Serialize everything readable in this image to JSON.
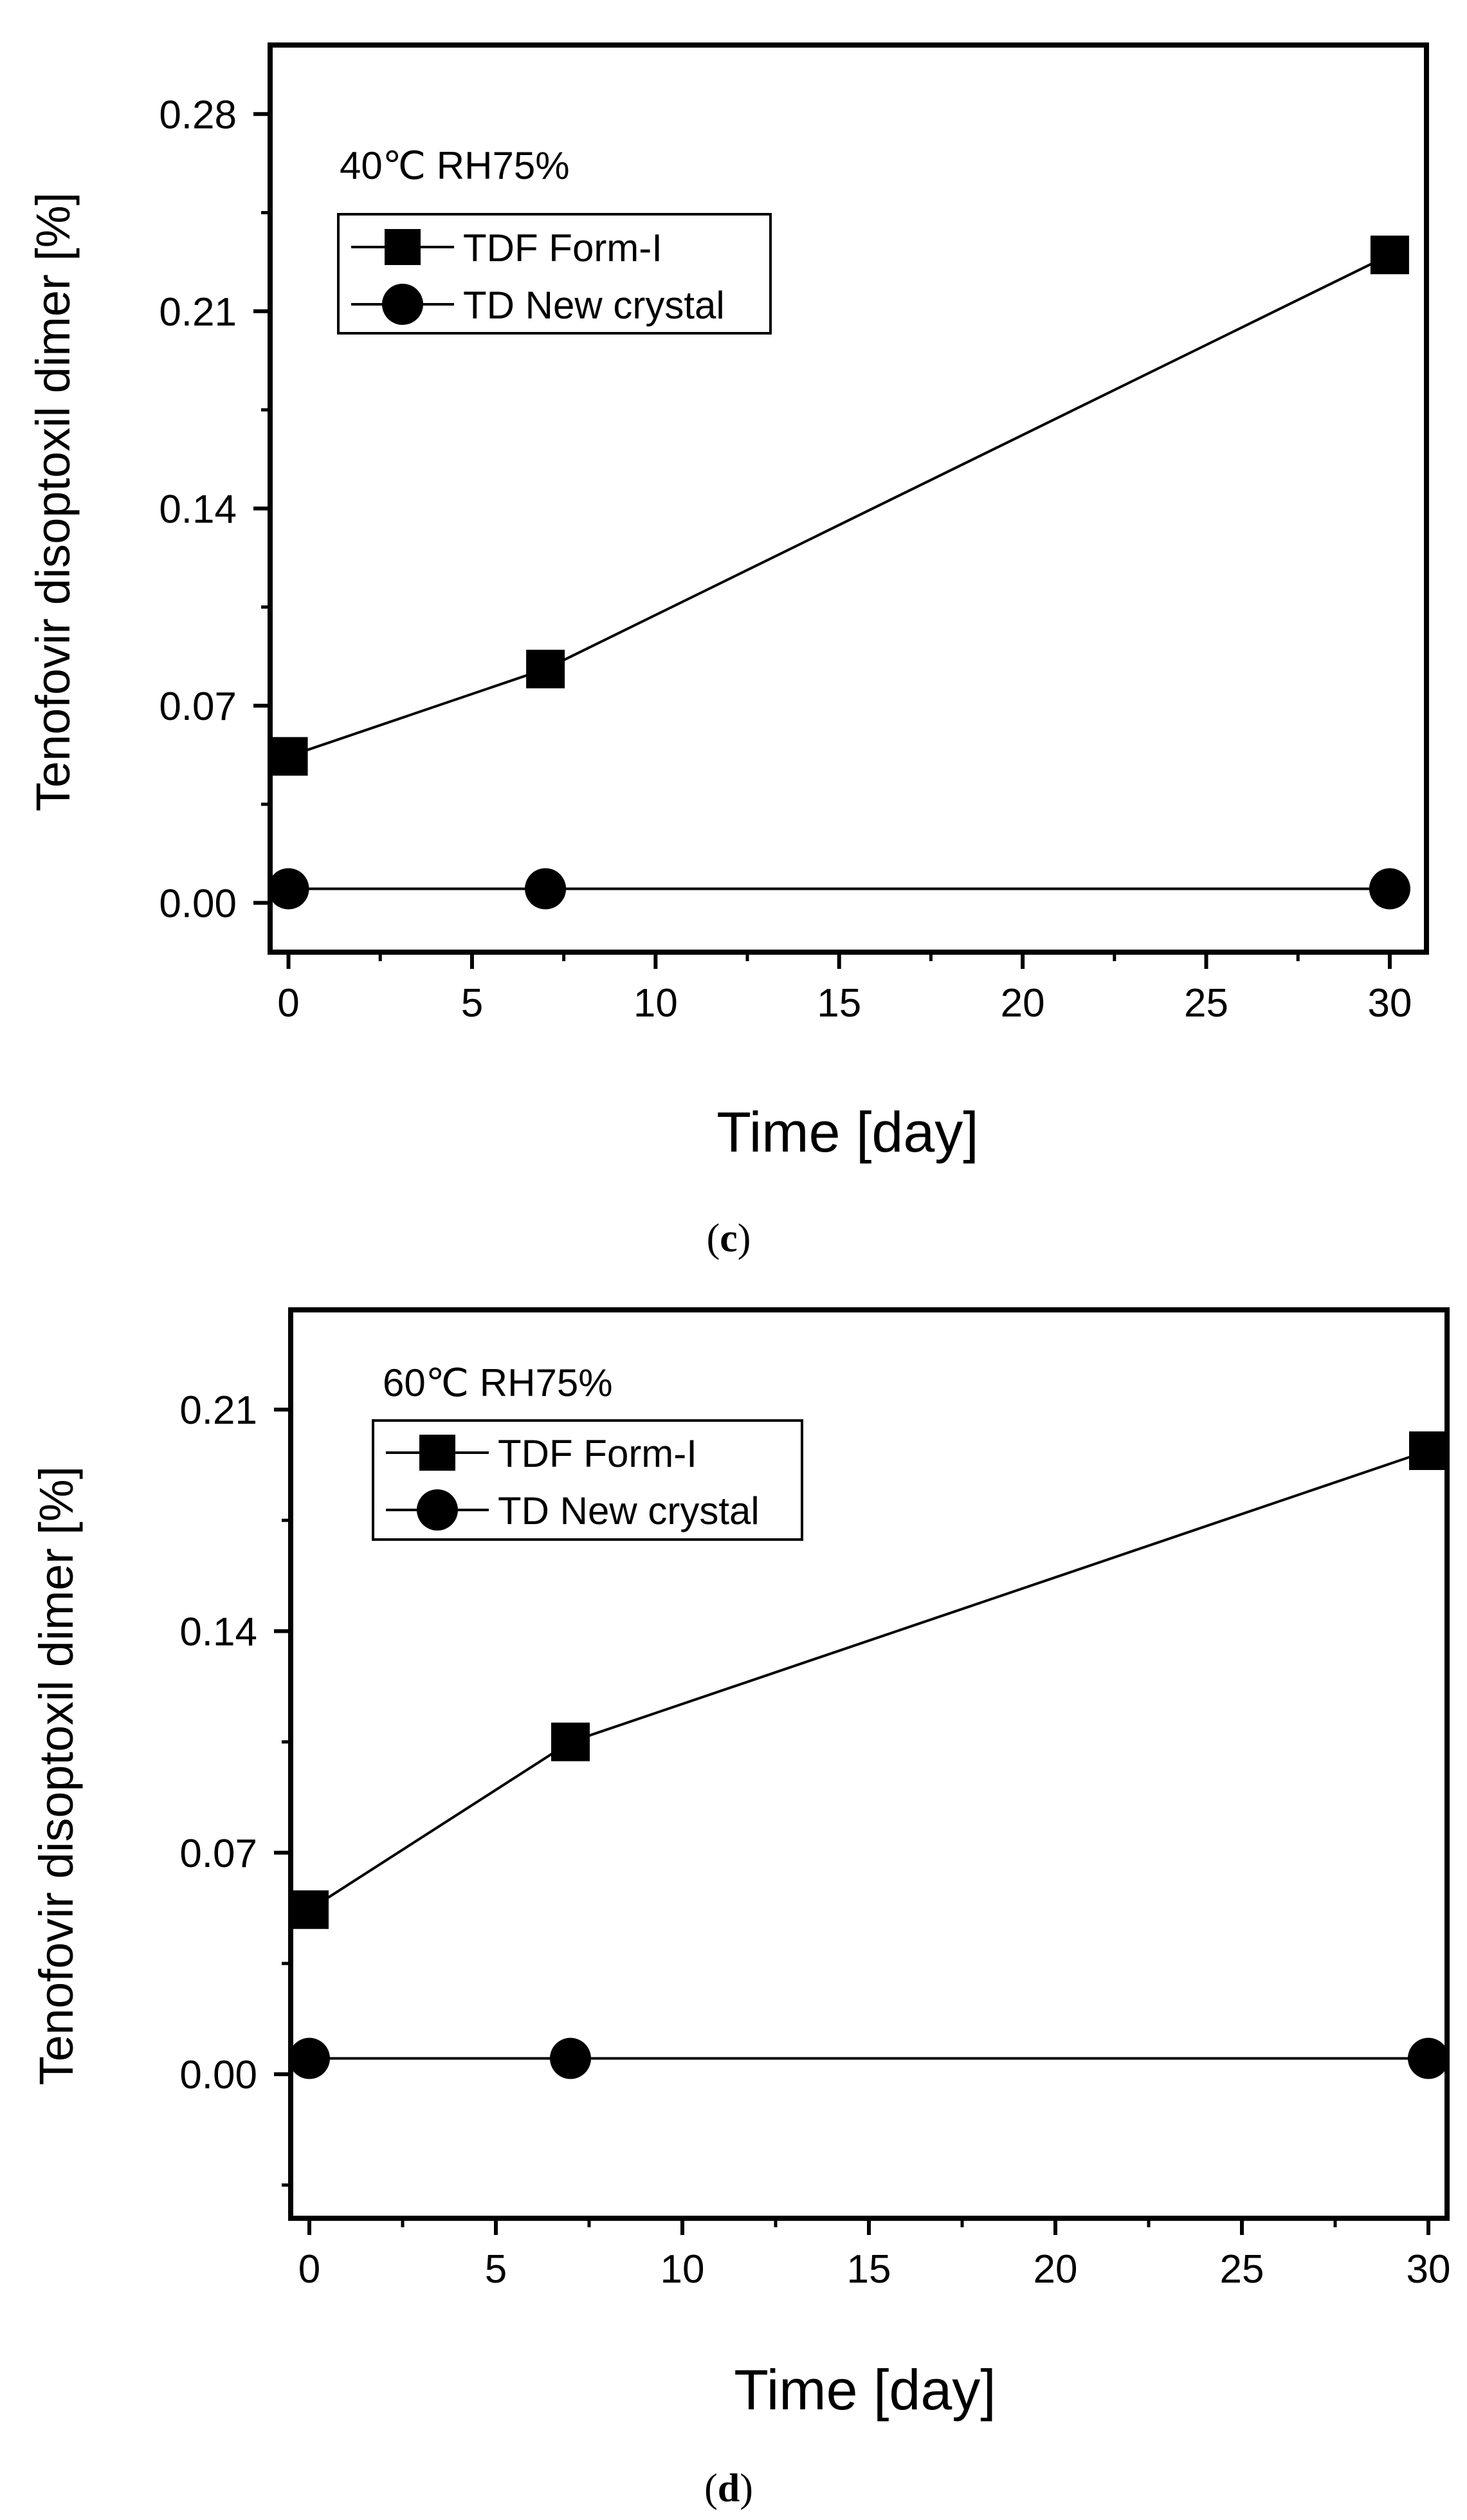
{
  "colors": {
    "ink": "#000000",
    "background": "#ffffff"
  },
  "chart_data": [
    {
      "type": "line",
      "panel_label": "c",
      "annotation": "40℃ RH75%",
      "xlabel": "Time [day]",
      "ylabel": "Tenofovir disoptoxil dimer [%]",
      "xlim": [
        -0.5,
        31
      ],
      "ylim": [
        -0.0175,
        0.3045
      ],
      "x_ticks": [
        0,
        5,
        10,
        15,
        20,
        25,
        30
      ],
      "x_tick_labels": [
        "0",
        "5",
        "10",
        "15",
        "20",
        "25",
        "30"
      ],
      "y_ticks": [
        0.0,
        0.07,
        0.14,
        0.21,
        0.28
      ],
      "y_tick_labels": [
        "0.00",
        "0.07",
        "0.14",
        "0.21",
        "0.28"
      ],
      "legend_position": "upper-left",
      "series": [
        {
          "name": "TDF Form-I",
          "marker": "square",
          "x": [
            0,
            7,
            30
          ],
          "values": [
            0.052,
            0.083,
            0.23
          ]
        },
        {
          "name": "TD New crystal",
          "marker": "circle",
          "x": [
            0,
            7,
            30
          ],
          "values": [
            0.005,
            0.005,
            0.005
          ]
        }
      ]
    },
    {
      "type": "line",
      "panel_label": "d",
      "annotation": "60℃ RH75%",
      "xlabel": "Time [day]",
      "ylabel": "Tenofovir disoptoxil dimer [%]",
      "xlim": [
        -0.5,
        30.5
      ],
      "ylim": [
        -0.0455,
        0.2415
      ],
      "x_ticks": [
        0,
        5,
        10,
        15,
        20,
        25,
        30
      ],
      "x_tick_labels": [
        "0",
        "5",
        "10",
        "15",
        "20",
        "25",
        "30"
      ],
      "y_ticks": [
        0.0,
        0.07,
        0.14,
        0.21
      ],
      "y_tick_labels": [
        "0.00",
        "0.07",
        "0.14",
        "0.21"
      ],
      "legend_position": "upper-left",
      "series": [
        {
          "name": "TDF Form-I",
          "marker": "square",
          "x": [
            0,
            7,
            30
          ],
          "values": [
            0.052,
            0.105,
            0.197
          ]
        },
        {
          "name": "TD New crystal",
          "marker": "circle",
          "x": [
            0,
            7,
            30
          ],
          "values": [
            0.005,
            0.005,
            0.005
          ]
        }
      ]
    }
  ]
}
